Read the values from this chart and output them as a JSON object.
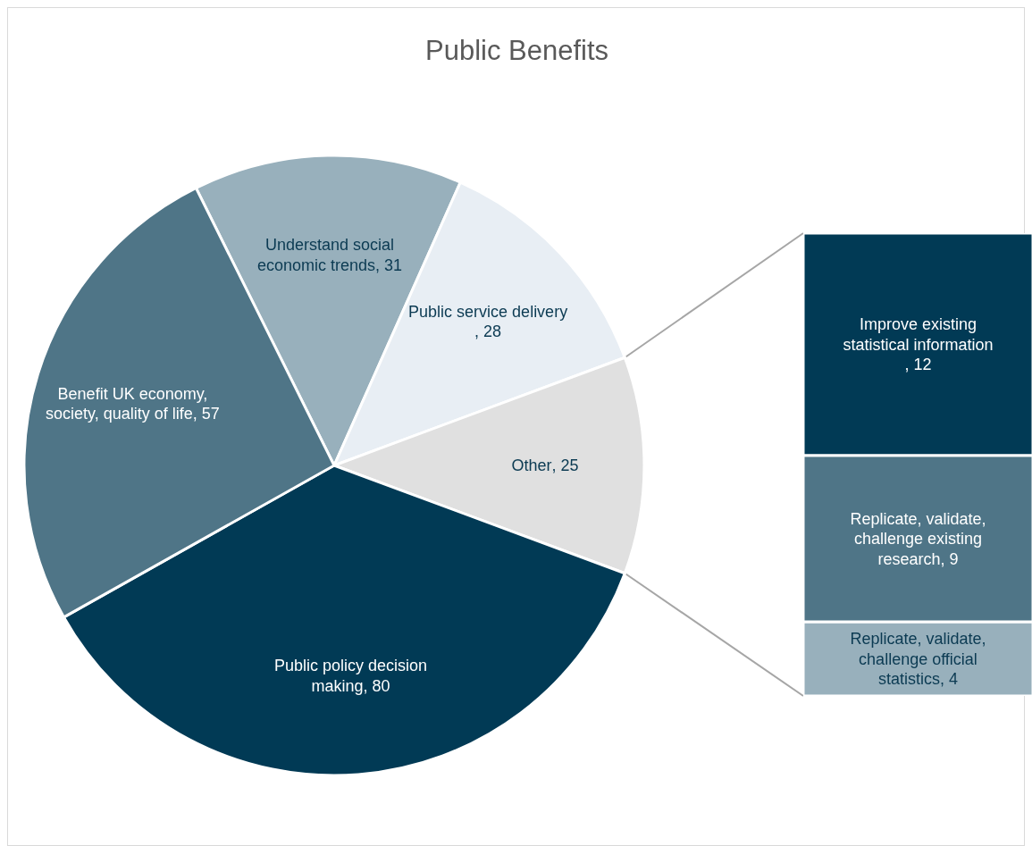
{
  "chart_data": [
    {
      "type": "pie",
      "title": "Public Benefits",
      "categories": [
        "Understand social economic trends",
        "Public service delivery",
        "Other",
        "Public policy decision making",
        "Benefit UK economy, society, quality of life"
      ],
      "values": [
        31,
        28,
        25,
        80,
        57
      ],
      "colors": [
        "#98b0bc",
        "#e8eef4",
        "#e0e0e0",
        "#013a55",
        "#4f7587"
      ],
      "value_labels": [
        ", 31",
        ", 28",
        ", 25",
        ", 80",
        ", 57"
      ]
    },
    {
      "type": "bar",
      "stacked": true,
      "categories": [
        null
      ],
      "series": [
        {
          "name": "Replicate, validate, challenge official statistics",
          "color": "#98b0bc",
          "values": [
            4
          ],
          "value_labels": [
            ", 4"
          ]
        },
        {
          "name": "Replicate, validate, challenge existing research",
          "color": "#4f7587",
          "values": [
            9
          ],
          "value_labels": [
            ", 9"
          ]
        },
        {
          "name": "Improve existing statistical information",
          "color": "#013a55",
          "values": [
            12
          ],
          "value_labels": [
            ", 12"
          ]
        }
      ]
    }
  ]
}
